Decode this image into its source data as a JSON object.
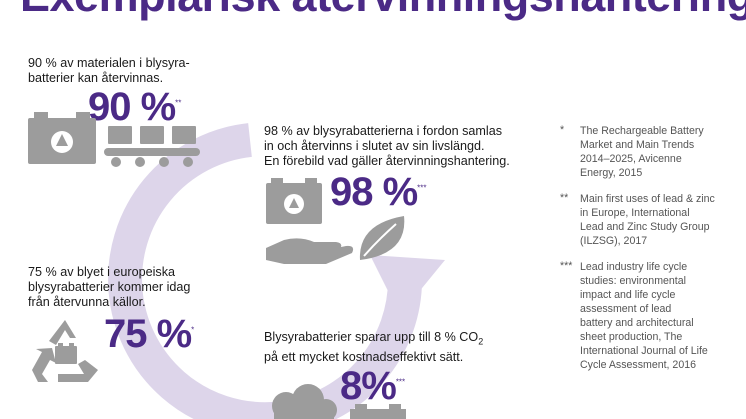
{
  "title": "Exemplarisk återvinningshantering",
  "stats": [
    {
      "text": [
        "90 % av materialen i blysyra-",
        "batterier kan återvinnas."
      ],
      "value": "90 %",
      "ref": "**"
    },
    {
      "text": [
        "98 % av blysyrabatterierna i fordon samlas",
        "in och återvinns i slutet av sin livslängd.",
        "En förebild vad gäller återvinningshantering."
      ],
      "value": "98 %",
      "ref": "***"
    },
    {
      "text": [
        "75 % av blyet i europeiska",
        "blysyrabatterier kommer idag",
        "från återvunna källor."
      ],
      "value": "75 %",
      "ref": "*"
    },
    {
      "text_before": "Blysyrabatterier sparar upp till 8 % CO",
      "text_sub": "2",
      "text_after": "på ett mycket kostnadseffektivt sätt.",
      "value": "8%",
      "ref": "***"
    }
  ],
  "footnotes": [
    {
      "mark": "*",
      "lines": [
        "The Rechargeable Battery",
        "Market and Main Trends",
        "2014–2025, Avicenne",
        "Energy, 2015"
      ]
    },
    {
      "mark": "**",
      "lines": [
        "Main first uses of lead & zinc",
        "in Europe, International",
        "Lead and Zinc Study Group",
        "(ILZSG), 2017"
      ]
    },
    {
      "mark": "***",
      "lines": [
        "Lead industry life cycle",
        "studies: environmental",
        "impact and life cycle",
        "assessment of lead",
        "battery and architectural",
        "sheet production, The",
        "International Journal of Life",
        "Cycle Assessment, 2016"
      ]
    }
  ],
  "colors": {
    "accent": "#4b2a86",
    "circle": "#d9d1e9",
    "icon": "#9c9c9c"
  }
}
